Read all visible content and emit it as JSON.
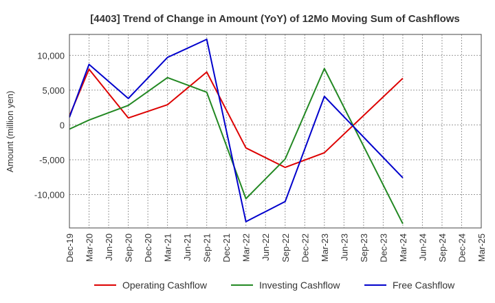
{
  "chart_data": {
    "type": "line",
    "title": "[4403]  Trend of Change in Amount (YoY) of 12Mo Moving Sum of Cashflows",
    "xlabel": "",
    "ylabel": "Amount (million yen)",
    "ylim": [
      -14800,
      13000
    ],
    "yticks": [
      10000,
      5000,
      0,
      -5000,
      -10000
    ],
    "ytick_labels": [
      "10,000",
      "5,000",
      "0",
      "-5,000",
      "-10,000"
    ],
    "categories": [
      "Dec-19",
      "Mar-20",
      "Jun-20",
      "Sep-20",
      "Dec-20",
      "Mar-21",
      "Jun-21",
      "Sep-21",
      "Dec-21",
      "Mar-22",
      "Jun-22",
      "Sep-22",
      "Dec-22",
      "Mar-23",
      "Jun-23",
      "Sep-23",
      "Dec-23",
      "Mar-24",
      "Jun-24",
      "Sep-24",
      "Dec-24",
      "Mar-25"
    ],
    "grid": true,
    "legend_position": "bottom",
    "series": [
      {
        "name": "Operating Cashflow",
        "color": "#dd0000",
        "values": [
          1300,
          8000,
          null,
          1000,
          null,
          2900,
          null,
          7600,
          null,
          -3300,
          null,
          -6100,
          null,
          -4000,
          null,
          null,
          null,
          6700,
          null,
          null,
          null,
          null
        ]
      },
      {
        "name": "Investing Cashflow",
        "color": "#228822",
        "values": [
          -600,
          700,
          null,
          2800,
          null,
          6800,
          null,
          4700,
          null,
          -10600,
          null,
          -4900,
          null,
          8100,
          null,
          null,
          null,
          -14200,
          null,
          null,
          null,
          null
        ]
      },
      {
        "name": "Free Cashflow",
        "color": "#0000cc",
        "values": [
          1100,
          8700,
          null,
          3800,
          null,
          9700,
          null,
          12300,
          null,
          -13900,
          null,
          -11000,
          null,
          4100,
          null,
          null,
          null,
          -7600,
          null,
          null,
          null,
          null
        ]
      }
    ]
  }
}
